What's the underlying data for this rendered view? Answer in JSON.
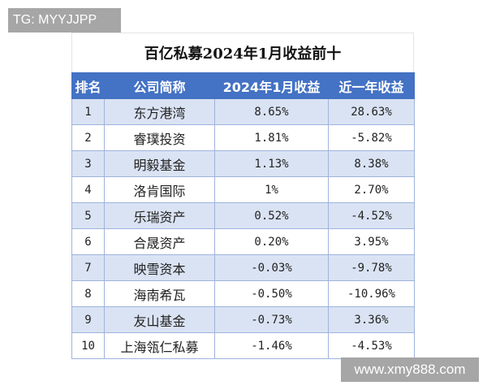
{
  "watermarks": {
    "top_left": "TG: MYYJJPP",
    "bottom_right": "www.xmy888.com"
  },
  "table": {
    "title": "百亿私募2024年1月收益前十",
    "headers": [
      "排名",
      "公司简称",
      "2024年1月收益",
      "近一年收益"
    ],
    "rows": [
      {
        "rank": "1",
        "name": "东方港湾",
        "jan_2024": "8.65%",
        "one_year": "28.63%"
      },
      {
        "rank": "2",
        "name": "睿璞投资",
        "jan_2024": "1.81%",
        "one_year": "-5.82%"
      },
      {
        "rank": "3",
        "name": "明毅基金",
        "jan_2024": "1.13%",
        "one_year": "8.38%"
      },
      {
        "rank": "4",
        "name": "洛肯国际",
        "jan_2024": "1%",
        "one_year": "2.70%"
      },
      {
        "rank": "5",
        "name": "乐瑞资产",
        "jan_2024": "0.52%",
        "one_year": "-4.52%"
      },
      {
        "rank": "6",
        "name": "合晟资产",
        "jan_2024": "0.20%",
        "one_year": "3.95%"
      },
      {
        "rank": "7",
        "name": "映雪资本",
        "jan_2024": "-0.03%",
        "one_year": "-9.78%"
      },
      {
        "rank": "8",
        "name": "海南希瓦",
        "jan_2024": "-0.50%",
        "one_year": "-10.96%"
      },
      {
        "rank": "9",
        "name": "友山基金",
        "jan_2024": "-0.73%",
        "one_year": "3.36%"
      },
      {
        "rank": "10",
        "name": "上海瓴仁私募",
        "jan_2024": "-1.46%",
        "one_year": "-4.53%"
      }
    ]
  },
  "colors": {
    "header_bg": "#4472c4",
    "band_bg": "#dae3f3",
    "watermark_bg": "#a6a6a6"
  }
}
